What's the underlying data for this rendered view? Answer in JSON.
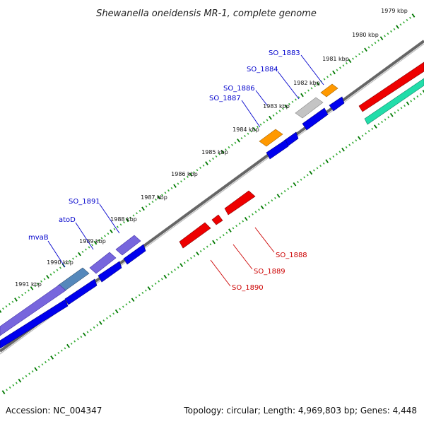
{
  "header": {
    "title": "Shewanella oneidensis MR-1, complete genome"
  },
  "footer": {
    "accession": "Accession: NC_004347",
    "topology": "Topology: circular; Length: 4,969,803 bp; Genes: 4,448"
  },
  "scale_labels": [
    "1979 kbp",
    "1980 kbp",
    "1981 kbp",
    "1982 kbp",
    "1983 kbp",
    "1984 kbp",
    "1985 kbp",
    "1986 kbp",
    "1987 kbp",
    "1988 kbp",
    "1989 kbp",
    "1990 kbp",
    "1991 kbp"
  ],
  "genes_outer": [
    {
      "name": "SO_1883",
      "color": "#0000cc"
    },
    {
      "name": "SO_1884",
      "color": "#0000cc"
    },
    {
      "name": "SO_1886",
      "color": "#0000cc"
    },
    {
      "name": "SO_1887",
      "color": "#0000cc"
    },
    {
      "name": "SO_1891",
      "color": "#0000cc"
    },
    {
      "name": "atoD",
      "color": "#0000cc"
    },
    {
      "name": "mvaB",
      "color": "#0000cc"
    }
  ],
  "genes_inner": [
    {
      "name": "SO_1888",
      "color": "#cc0000"
    },
    {
      "name": "SO_1889",
      "color": "#cc0000"
    },
    {
      "name": "SO_1890",
      "color": "#cc0000"
    }
  ],
  "feature_colors": {
    "plus_cds": "#0000ee",
    "minus_cds": "#ee0000",
    "plus_gene_orange": "#ff9900",
    "plus_gene_gray": "#bbbbbb",
    "plus_gene_purple": "#7766dd",
    "plus_gene_teal": "#5588bb",
    "minus_gene_green": "#22ddaa",
    "backbone": "#666666",
    "tick_major": "#007700",
    "tick_minor": "#33aa33"
  }
}
